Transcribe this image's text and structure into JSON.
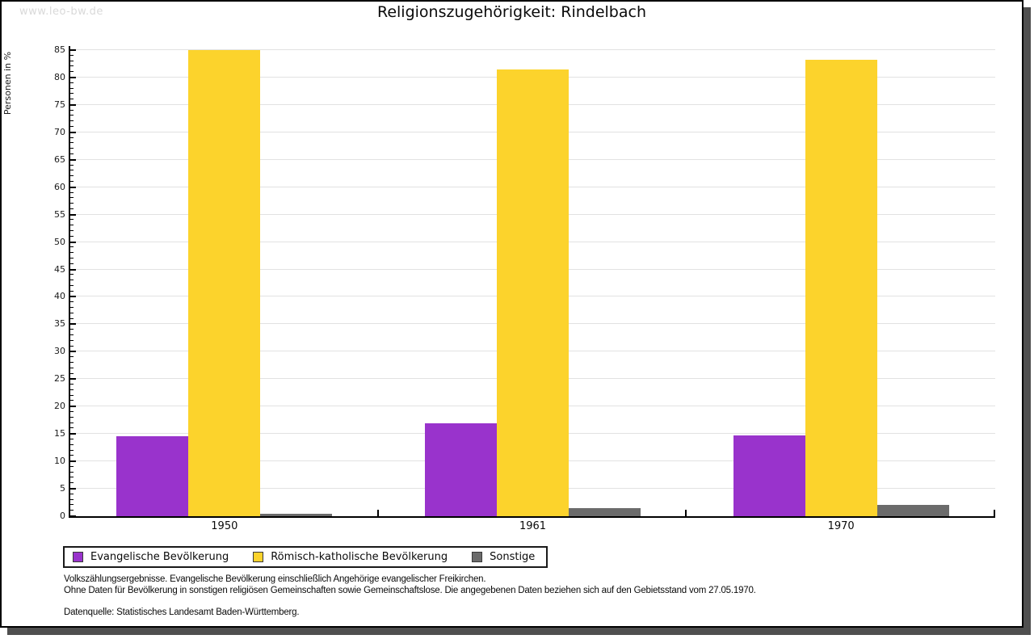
{
  "watermark": "www.leo-bw.de",
  "title": "Religionszugehörigkeit: Rindelbach",
  "chart_data": {
    "type": "bar",
    "title": "Religionszugehörigkeit: Rindelbach",
    "categories": [
      "1950",
      "1961",
      "1970"
    ],
    "series": [
      {
        "name": "Evangelische Bevölkerung",
        "color": "#9933cc",
        "values": [
          14.6,
          17.0,
          14.7
        ]
      },
      {
        "name": "Römisch-katholische Bevölkerung",
        "color": "#fcd32c",
        "values": [
          85.0,
          81.5,
          83.2
        ]
      },
      {
        "name": "Sonstige",
        "color": "#6b6b6b",
        "values": [
          0.4,
          1.5,
          2.1
        ]
      }
    ],
    "xlabel": "",
    "ylabel": "Personen in %",
    "ylim": [
      0,
      85
    ],
    "ytick_interval": 5,
    "minor_tick_interval": 1,
    "grid": true,
    "legend_position": "bottom-left"
  },
  "footnotes": {
    "line1": "Volkszählungsergebnisse. Evangelische Bevölkerung einschließlich Angehörige evangelischer Freikirchen.",
    "line2": "Ohne Daten für Bevölkerung in sonstigen religiösen Gemeinschaften sowie Gemeinschaftslose. Die angegebenen Daten beziehen sich auf den Gebietsstand vom 27.05.1970.",
    "source": "Datenquelle: Statistisches Landesamt Baden-Württemberg."
  }
}
